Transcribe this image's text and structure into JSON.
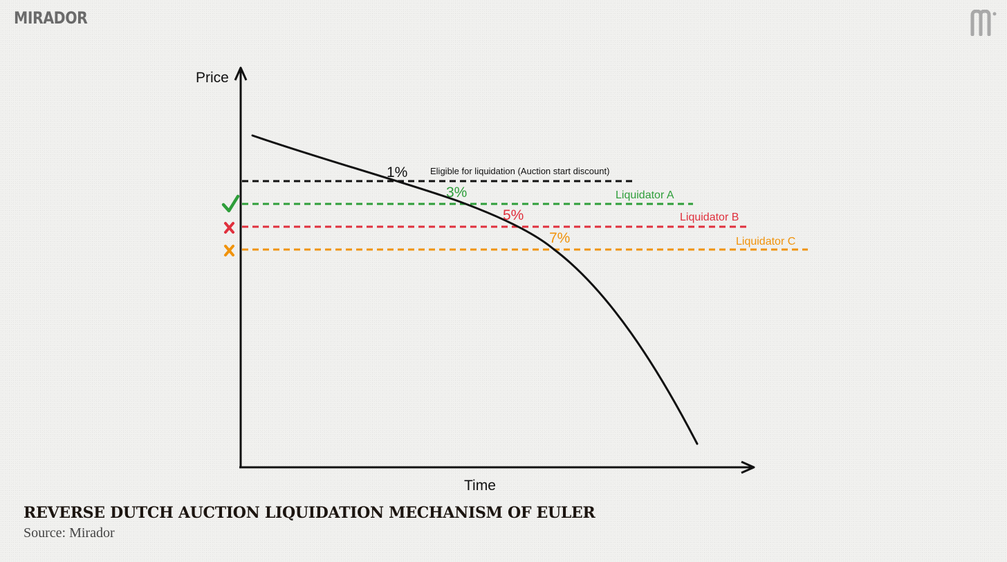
{
  "brand": {
    "name": "MIRADOR",
    "logo_icon": "mirador-m-logo-icon"
  },
  "diagram": {
    "y_axis_label": "Price",
    "x_axis_label": "Time",
    "eligible_label": "Eligible for liquidation (Auction start discount)",
    "discounts": [
      "1%",
      "3%",
      "5%",
      "7%"
    ],
    "liquidators": [
      {
        "name": "Liquidator A",
        "status_icon": "checkmark-icon",
        "color": "#2e9e3a"
      },
      {
        "name": "Liquidator B",
        "status_icon": "cross-icon",
        "color": "#e0303d"
      },
      {
        "name": "Liquidator C",
        "status_icon": "cross-icon",
        "color": "#f0930c"
      }
    ],
    "eligible_color": "#111111"
  },
  "caption": {
    "title": "REVERSE DUTCH AUCTION LIQUIDATION MECHANISM OF EULER",
    "source": "Source: Mirador"
  }
}
